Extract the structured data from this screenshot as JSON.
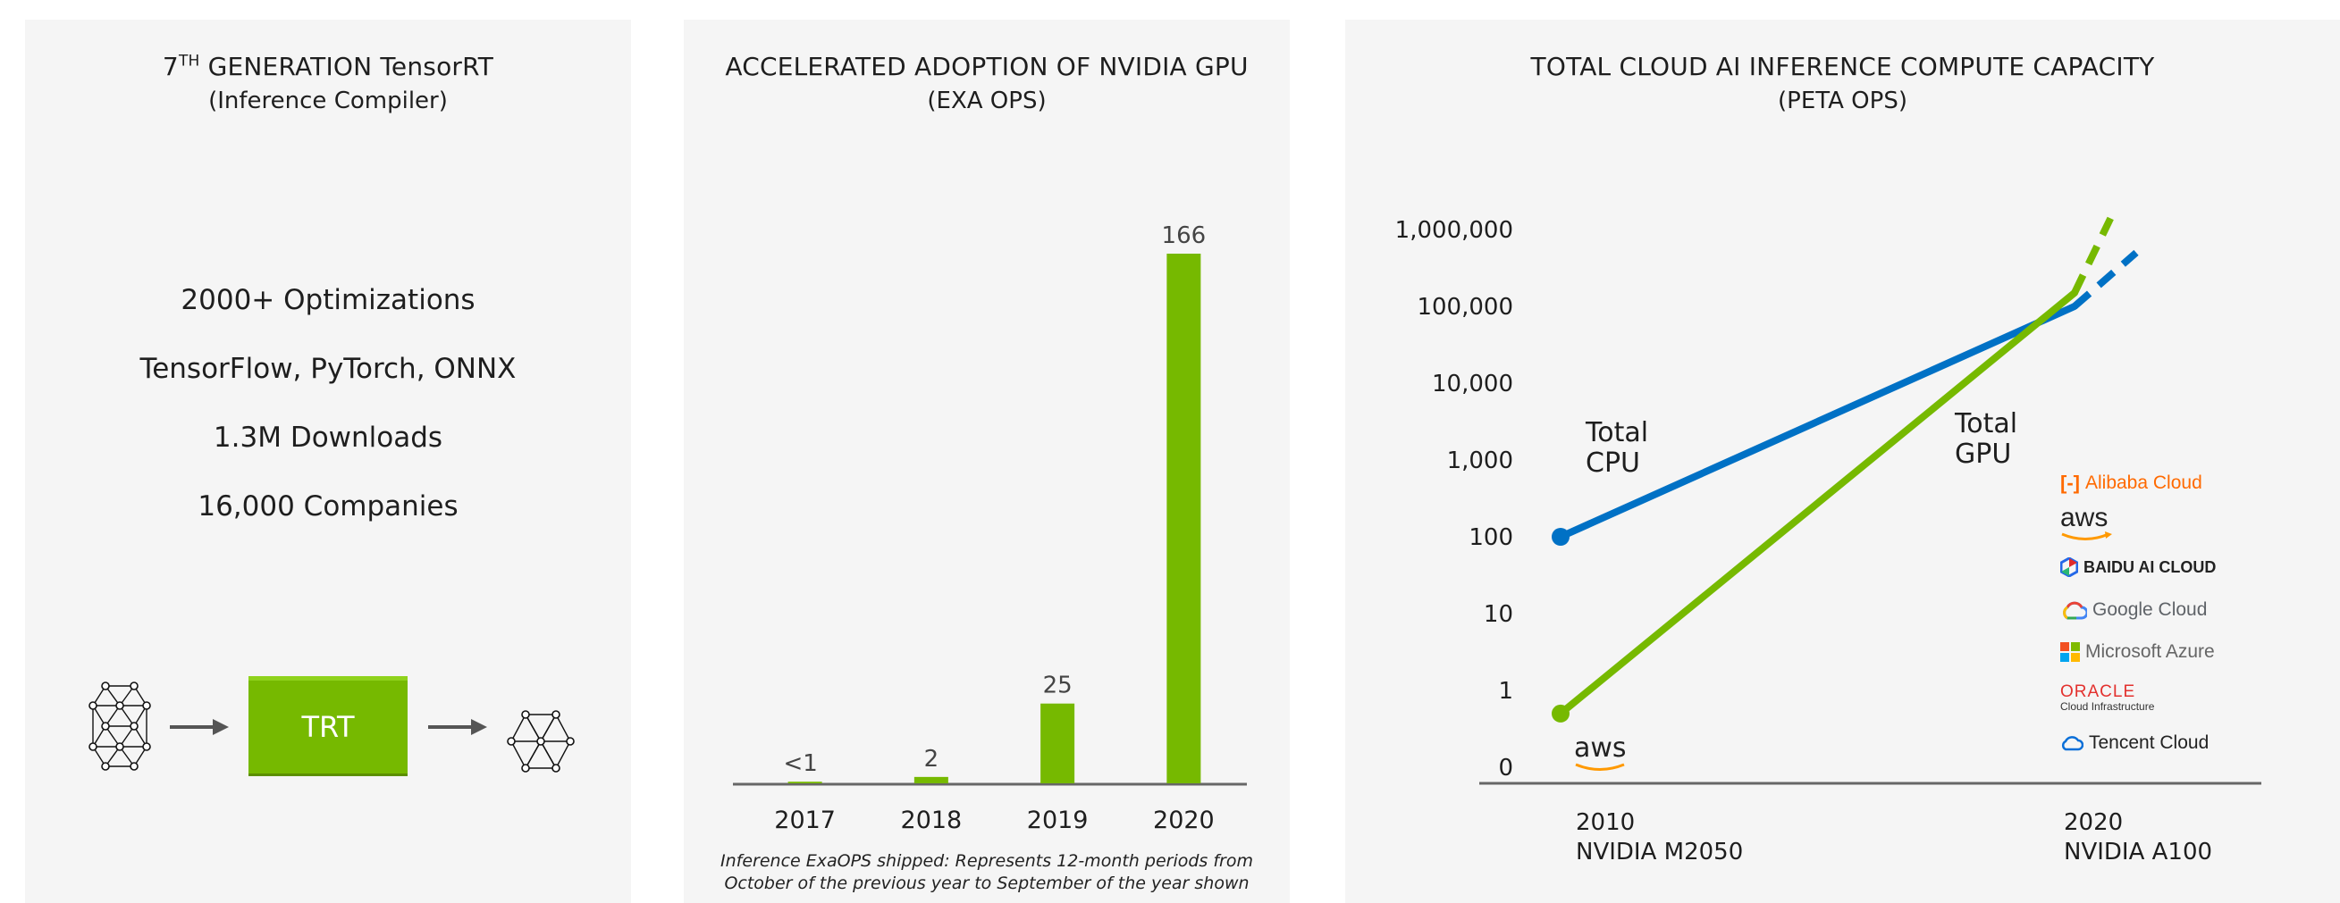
{
  "panel1": {
    "title_num": "7",
    "title_sup": "TH",
    "title_rest": " GENERATION TensorRT",
    "subtitle": "(Inference Compiler)",
    "stats": [
      "2000+ Optimizations",
      "TensorFlow, PyTorch, ONNX",
      "1.3M Downloads",
      "16,000  Companies"
    ],
    "trt_label": "TRT"
  },
  "panel2": {
    "footnote_line1": "Inference ExaOPS shipped: Represents 12-month periods from",
    "footnote_line2": "October of the previous year to September of the year shown"
  },
  "panel3": {
    "cpu_label_1": "Total",
    "cpu_label_2": "CPU",
    "gpu_label_1": "Total",
    "gpu_label_2": "GPU",
    "aws_bottom": "aws",
    "x_labels": [
      {
        "year": "2010",
        "gpu": "NVIDIA M2050"
      },
      {
        "year": "2020",
        "gpu": "NVIDIA A100"
      }
    ],
    "logos": [
      "Alibaba Cloud",
      "aws",
      "BAIDU AI CLOUD",
      "Google Cloud",
      "Microsoft Azure",
      "ORACLE",
      "Cloud Infrastructure",
      "Tencent Cloud"
    ]
  },
  "colors": {
    "green": "#76b900",
    "blue": "#0071c5",
    "axis": "#666666",
    "bg": "#f5f5f5"
  },
  "chart_data": [
    {
      "type": "bar",
      "title": "ACCELERATED ADOPTION OF NVIDIA GPU",
      "subtitle": "(EXA OPS)",
      "categories": [
        "2017",
        "2018",
        "2019",
        "2020"
      ],
      "values": [
        0.5,
        2,
        25,
        166
      ],
      "value_labels": [
        "<1",
        "2",
        "25",
        "166"
      ],
      "ylim": [
        0,
        166
      ],
      "xlabel": "",
      "ylabel": ""
    },
    {
      "type": "line",
      "title": "TOTAL CLOUD AI INFERENCE COMPUTE CAPACITY",
      "subtitle": "(PETA OPS)",
      "yscale": "log",
      "y_ticks": [
        {
          "value": 0.1,
          "label": "0"
        },
        {
          "value": 1,
          "label": "1"
        },
        {
          "value": 10,
          "label": "10"
        },
        {
          "value": 100,
          "label": "100"
        },
        {
          "value": 1000,
          "label": "1,000"
        },
        {
          "value": 10000,
          "label": "10,000"
        },
        {
          "value": 100000,
          "label": "100,000"
        },
        {
          "value": 1000000,
          "label": "1,000,000"
        }
      ],
      "x": [
        2010,
        2020
      ],
      "series": [
        {
          "name": "Total CPU",
          "color": "#0071c5",
          "points": [
            [
              2010,
              100
            ],
            [
              2020,
              100000
            ]
          ],
          "projection": [
            [
              2020,
              100000
            ],
            [
              2021.2,
              500000
            ]
          ]
        },
        {
          "name": "Total GPU",
          "color": "#76b900",
          "points": [
            [
              2010,
              0.5
            ],
            [
              2020,
              150000
            ]
          ],
          "projection": [
            [
              2020,
              150000
            ],
            [
              2020.7,
              1400000
            ]
          ]
        }
      ]
    }
  ]
}
